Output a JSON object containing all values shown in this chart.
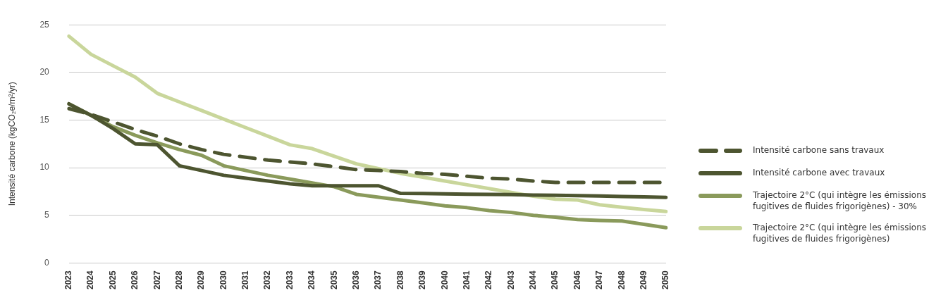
{
  "chart_data": {
    "type": "line",
    "ylabel": "Intensité carbone (kgCO₂e/m²/yr)",
    "categories": [
      "2023",
      "2024",
      "2025",
      "2026",
      "2027",
      "2028",
      "2029",
      "2030",
      "2031",
      "2032",
      "2033",
      "2034",
      "2035",
      "2036",
      "2037",
      "2038",
      "2039",
      "2040",
      "2041",
      "2042",
      "2043",
      "2044",
      "2045",
      "2046",
      "2047",
      "2048",
      "2049",
      "2050"
    ],
    "ylim": [
      0,
      25
    ],
    "yticks": [
      0,
      5,
      10,
      15,
      20,
      25
    ],
    "grid": "y",
    "legend": "right",
    "marker": "none",
    "series": [
      {
        "name": "Intensité carbone sans travaux",
        "color": "#4d5530",
        "line_style": "dashed",
        "values": [
          16.2,
          15.6,
          14.8,
          14.0,
          13.3,
          12.5,
          11.9,
          11.4,
          11.1,
          10.8,
          10.6,
          10.4,
          10.1,
          9.8,
          9.7,
          9.6,
          9.4,
          9.3,
          9.1,
          8.9,
          8.8,
          8.6,
          8.45,
          8.45,
          8.45,
          8.45,
          8.45,
          8.45
        ]
      },
      {
        "name": "Intensité carbone avec travaux",
        "color": "#4d5530",
        "line_style": "solid",
        "values": [
          16.7,
          15.5,
          14.1,
          12.5,
          12.4,
          10.2,
          9.7,
          9.2,
          8.9,
          8.6,
          8.3,
          8.1,
          8.1,
          8.1,
          8.1,
          7.3,
          7.28,
          7.25,
          7.22,
          7.2,
          7.17,
          7.13,
          7.1,
          7.07,
          7.03,
          6.98,
          6.93,
          6.88
        ]
      },
      {
        "name": "Trajectoire 2°C (qui intègre les émissions fugitives de fluides frigorigènes) - 30%",
        "color": "#8a9a5b",
        "line_style": "solid",
        "values": [
          16.7,
          15.5,
          14.3,
          13.4,
          12.6,
          11.9,
          11.3,
          10.2,
          9.7,
          9.2,
          8.8,
          8.4,
          8.0,
          7.2,
          6.9,
          6.6,
          6.3,
          6.0,
          5.8,
          5.5,
          5.3,
          5.0,
          4.8,
          4.55,
          4.45,
          4.4,
          4.05,
          3.7
        ]
      },
      {
        "name": "Trajectoire 2°C (qui intègre les émissions fugitives de fluides frigorigènes)",
        "color": "#c9d69b",
        "line_style": "solid",
        "values": [
          23.8,
          21.9,
          20.7,
          19.5,
          17.8,
          16.9,
          16.0,
          15.1,
          14.2,
          13.3,
          12.4,
          12.0,
          11.2,
          10.4,
          9.9,
          9.4,
          9.0,
          8.6,
          8.2,
          7.8,
          7.4,
          7.0,
          6.7,
          6.6,
          6.1,
          5.85,
          5.6,
          5.4
        ]
      }
    ]
  }
}
